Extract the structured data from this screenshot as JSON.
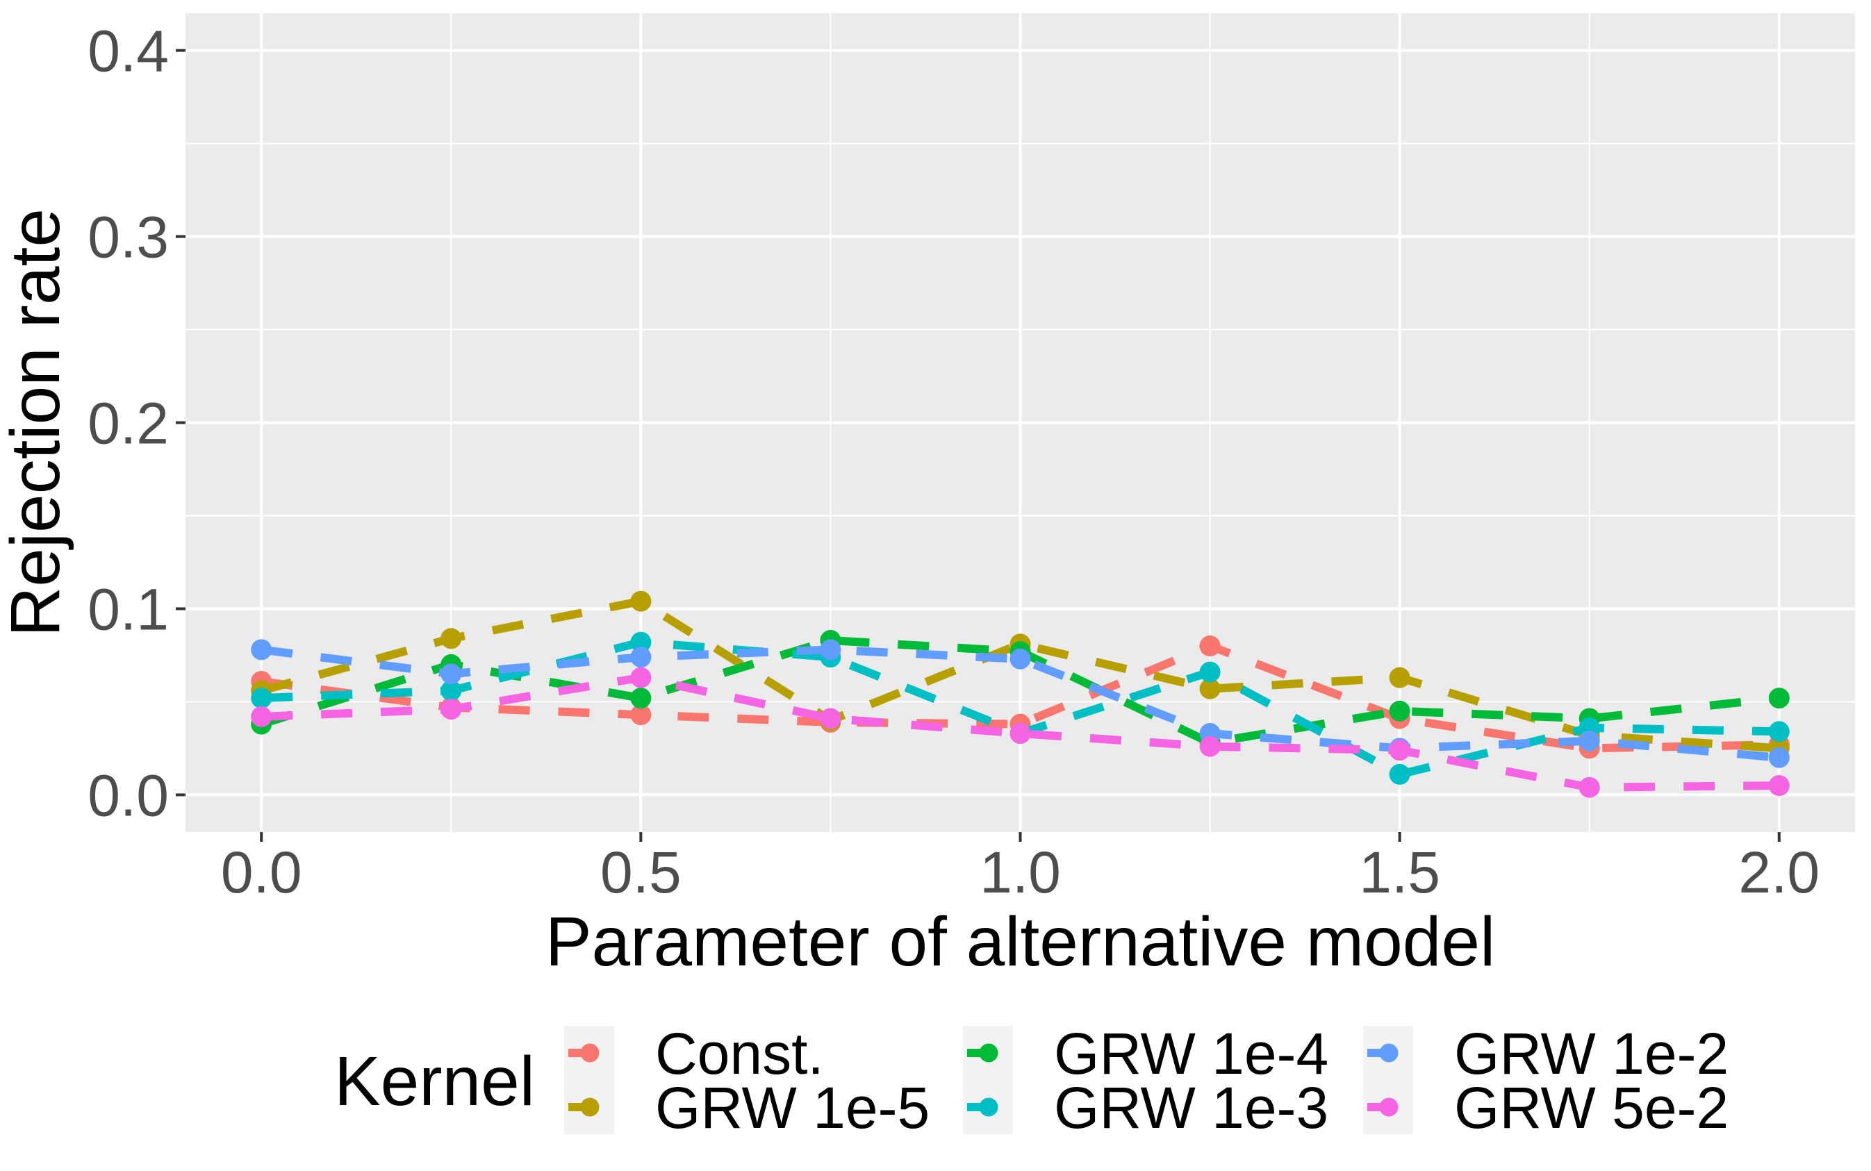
{
  "chart_data": {
    "type": "line",
    "line_style": "dashed",
    "title": "",
    "xlabel": "Parameter of alternative model",
    "ylabel": "Rejection rate",
    "x": [
      0,
      0.25,
      0.5,
      0.75,
      1.0,
      1.25,
      1.5,
      1.75,
      2.0
    ],
    "xlim": [
      -0.1,
      2.1
    ],
    "ylim": [
      -0.02,
      0.42
    ],
    "x_tick_values": [
      0.0,
      0.5,
      1.0,
      1.5,
      2.0
    ],
    "x_tick_labels": [
      "0.0",
      "0.5",
      "1.0",
      "1.5",
      "2.0"
    ],
    "x_minor_ticks": [
      0.25,
      0.75,
      1.25,
      1.75
    ],
    "y_tick_values": [
      0.0,
      0.1,
      0.2,
      0.3,
      0.4
    ],
    "y_tick_labels": [
      "0.0",
      "0.1",
      "0.2",
      "0.3",
      "0.4"
    ],
    "y_minor_ticks": [
      0.05,
      0.15,
      0.25,
      0.35
    ],
    "grid": true,
    "legend_title": "Kernel",
    "legend_position": "bottom",
    "series": [
      {
        "name": "Const.",
        "color": "#F8766D",
        "values": [
          0.061,
          0.047,
          0.043,
          0.039,
          0.038,
          0.08,
          0.041,
          0.025,
          0.027
        ]
      },
      {
        "name": "GRW 1e-5",
        "color": "#B79F00",
        "values": [
          0.056,
          0.084,
          0.104,
          0.04,
          0.081,
          0.057,
          0.063,
          0.032,
          0.025
        ]
      },
      {
        "name": "GRW 1e-4",
        "color": "#00BA38",
        "values": [
          0.038,
          0.07,
          0.052,
          0.083,
          0.077,
          0.028,
          0.045,
          0.041,
          0.052
        ]
      },
      {
        "name": "GRW 1e-3",
        "color": "#00BFC4",
        "values": [
          0.052,
          0.056,
          0.082,
          0.074,
          0.033,
          0.066,
          0.011,
          0.036,
          0.034
        ]
      },
      {
        "name": "GRW 1e-2",
        "color": "#619CFF",
        "values": [
          0.078,
          0.065,
          0.074,
          0.078,
          0.073,
          0.033,
          0.025,
          0.029,
          0.02
        ]
      },
      {
        "name": "GRW 5e-2",
        "color": "#F564E3",
        "values": [
          0.042,
          0.046,
          0.063,
          0.041,
          0.033,
          0.026,
          0.024,
          0.004,
          0.005
        ]
      }
    ],
    "colors": {
      "panel_background": "#EBEBEB",
      "grid": "#FFFFFF",
      "tick_mark": "#333333",
      "tick_label": "#4D4D4D",
      "axis_title": "#000000",
      "legend_text": "#000000",
      "legend_key_background": "#F2F2F2",
      "figure_background": "#FFFFFF"
    }
  }
}
